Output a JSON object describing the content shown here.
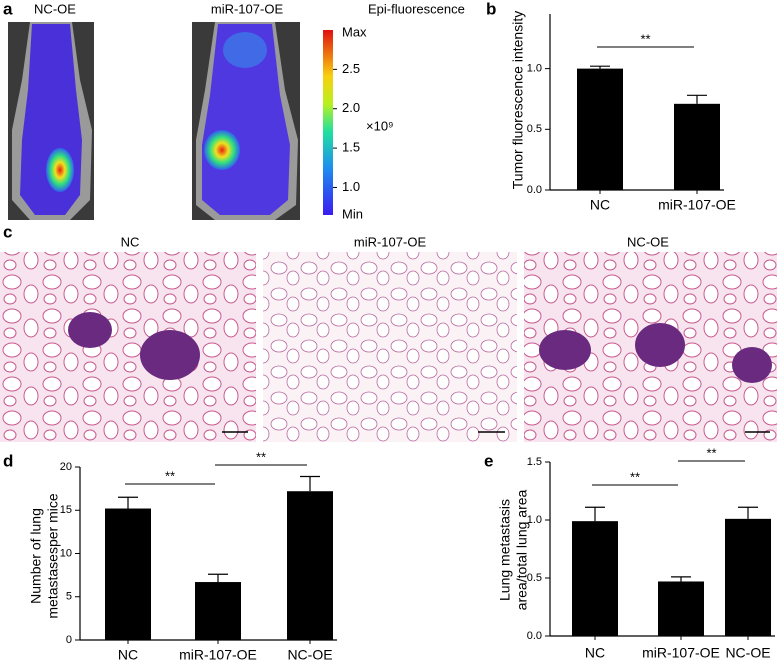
{
  "panel_labels": [
    "a",
    "b",
    "c",
    "d",
    "e"
  ],
  "imaging": {
    "labels": [
      "NC-OE",
      "miR-107-OE"
    ],
    "colorbar": {
      "title": "Epi-fluorescence",
      "max_label": "Max",
      "min_label": "Min",
      "multiplier": "×10⁹",
      "clim": [
        0.65,
        3.0
      ],
      "ticks": [
        2.5,
        {
          "value": 2,
          "label": "2.0"
        },
        1.5,
        {
          "value": 1,
          "label": "1.0"
        }
      ]
    }
  },
  "histology": {
    "labels": [
      "NC",
      "miR-107-OE",
      "NC-OE"
    ]
  },
  "chart_data": [
    {
      "type": "bar",
      "ylabel": [
        "Tumor fluorescence intensity"
      ],
      "categories": [
        "NC",
        "miR-107-OE"
      ],
      "values": [
        1.0,
        0.71
      ],
      "error": [
        0.02,
        0.07
      ],
      "color": "#000000",
      "ylim": [
        0,
        1.45
      ],
      "yticks": [
        {
          "value": 0,
          "label": "0.0"
        },
        0.5,
        {
          "value": 1,
          "label": "1.0"
        }
      ],
      "annotations": [
        "**"
      ]
    },
    {
      "type": "bar",
      "ylabel": [
        "Number of lung",
        "metastasesper mice"
      ],
      "categories": [
        "NC",
        "miR-107-OE",
        "NC-OE"
      ],
      "values": [
        15.2,
        6.7,
        17.2
      ],
      "error": [
        1.3,
        0.9,
        1.7
      ],
      "color": "#000000",
      "ylim": [
        0,
        20
      ],
      "yticks": [
        0,
        5,
        10,
        15,
        20
      ],
      "annotations": [
        "**",
        "**"
      ]
    },
    {
      "type": "bar",
      "ylabel": [
        "Lung metastasis",
        "area/total lung area"
      ],
      "categories": [
        "NC",
        "miR-107-OE",
        "NC-OE"
      ],
      "values": [
        0.99,
        0.47,
        1.01
      ],
      "error": [
        0.12,
        0.04,
        0.1
      ],
      "color": "#000000",
      "ylim": [
        0,
        1.5
      ],
      "yticks": [
        {
          "value": 0,
          "label": "0.0"
        },
        0.5,
        {
          "value": 1,
          "label": "1.0"
        },
        1.5
      ],
      "annotations": [
        "**",
        "**"
      ]
    }
  ]
}
